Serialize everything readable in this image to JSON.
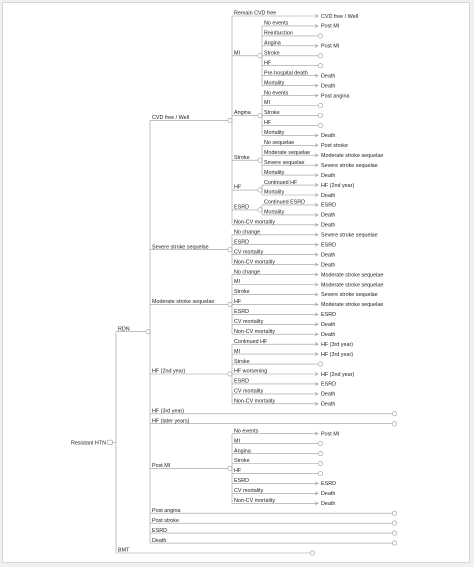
{
  "colors": {
    "line": "#9a9a9a",
    "node": "#9a9a9a",
    "text": "#222222",
    "background": "#ffffff"
  },
  "root": {
    "label": "Resistant HTN",
    "children": [
      {
        "label": "RDN",
        "children": [
          {
            "label": "CVD free / Well",
            "children": [
              {
                "label": "Remain CVD free",
                "outcome": "CVD free / Well"
              },
              {
                "label": "MI",
                "children": [
                  {
                    "label": "No events",
                    "outcome": "Post MI"
                  },
                  {
                    "label": "Reinfarction",
                    "outcome": ""
                  },
                  {
                    "label": "Angina",
                    "outcome": "Post MI"
                  },
                  {
                    "label": "Stroke",
                    "outcome": ""
                  },
                  {
                    "label": "HF",
                    "outcome": ""
                  },
                  {
                    "label": "Pre-hospital death",
                    "outcome": "Death"
                  },
                  {
                    "label": "Mortality",
                    "outcome": "Death"
                  }
                ]
              },
              {
                "label": "Angina",
                "children": [
                  {
                    "label": "No events",
                    "outcome": "Post angina"
                  },
                  {
                    "label": "MI",
                    "outcome": ""
                  },
                  {
                    "label": "Stroke",
                    "outcome": ""
                  },
                  {
                    "label": "HF",
                    "outcome": ""
                  },
                  {
                    "label": "Mortality",
                    "outcome": "Death"
                  }
                ]
              },
              {
                "label": "Stroke",
                "children": [
                  {
                    "label": "No sequelae",
                    "outcome": "Post stroke"
                  },
                  {
                    "label": "Moderate sequelae",
                    "outcome": "Moderate stroke sequelae"
                  },
                  {
                    "label": "Severe sequelae",
                    "outcome": "Severe stroke sequelae"
                  },
                  {
                    "label": "Mortality",
                    "outcome": "Death"
                  }
                ]
              },
              {
                "label": "HF",
                "children": [
                  {
                    "label": "Continued HF",
                    "outcome": "HF (2nd year)"
                  },
                  {
                    "label": "Mortality",
                    "outcome": "Death"
                  }
                ]
              },
              {
                "label": "ESRD",
                "children": [
                  {
                    "label": "Continued ESRD",
                    "outcome": "ESRD"
                  },
                  {
                    "label": "Mortality",
                    "outcome": "Death"
                  }
                ]
              },
              {
                "label": "Non-CV mortality",
                "outcome": "Death"
              }
            ]
          },
          {
            "label": "Severe stroke sequelae",
            "children": [
              {
                "label": "No change",
                "outcome": "Severe stroke sequelae"
              },
              {
                "label": "ESRD",
                "outcome": "ESRD"
              },
              {
                "label": "CV mortality",
                "outcome": "Death"
              },
              {
                "label": "Non-CV mortality",
                "outcome": "Death"
              }
            ]
          },
          {
            "label": "Moderate stroke sequelae",
            "children": [
              {
                "label": "No change",
                "outcome": "Moderate stroke sequelae"
              },
              {
                "label": "MI",
                "outcome": "Moderate stroke sequelae"
              },
              {
                "label": "Stroke",
                "outcome": "Severe stroke sequelae"
              },
              {
                "label": "HF",
                "outcome": "Moderate stroke sequelae"
              },
              {
                "label": "ESRD",
                "outcome": "ESRD"
              },
              {
                "label": "CV mortality",
                "outcome": "Death"
              },
              {
                "label": "Non-CV mortality",
                "outcome": "Death"
              }
            ]
          },
          {
            "label": "HF (2nd year)",
            "children": [
              {
                "label": "Continued HF",
                "outcome": "HF (3rd year)"
              },
              {
                "label": "MI",
                "outcome": "HF (3rd year)"
              },
              {
                "label": "Stroke",
                "outcome": ""
              },
              {
                "label": "HF worsening",
                "outcome": "HF (2nd year)"
              },
              {
                "label": "ESRD",
                "outcome": "ESRD"
              },
              {
                "label": "CV mortality",
                "outcome": "Death"
              },
              {
                "label": "Non-CV mortality",
                "outcome": "Death"
              }
            ]
          },
          {
            "label": "HF (3rd year)",
            "outcome": ""
          },
          {
            "label": "HF (later years)",
            "outcome": ""
          },
          {
            "label": "Post MI",
            "children": [
              {
                "label": "No events",
                "outcome": "Post MI"
              },
              {
                "label": "MI",
                "outcome": ""
              },
              {
                "label": "Angina",
                "outcome": ""
              },
              {
                "label": "Stroke",
                "outcome": ""
              },
              {
                "label": "HF",
                "outcome": ""
              },
              {
                "label": "ESRD",
                "outcome": "ESRD"
              },
              {
                "label": "CV mortality",
                "outcome": "Death"
              },
              {
                "label": "Non-CV mortality",
                "outcome": "Death"
              }
            ]
          },
          {
            "label": "Post angina",
            "outcome": ""
          },
          {
            "label": "Post stroke",
            "outcome": ""
          },
          {
            "label": "ESRD",
            "outcome": ""
          },
          {
            "label": "Death",
            "outcome": ""
          }
        ]
      },
      {
        "label": "BMT",
        "outcome": ""
      }
    ]
  }
}
